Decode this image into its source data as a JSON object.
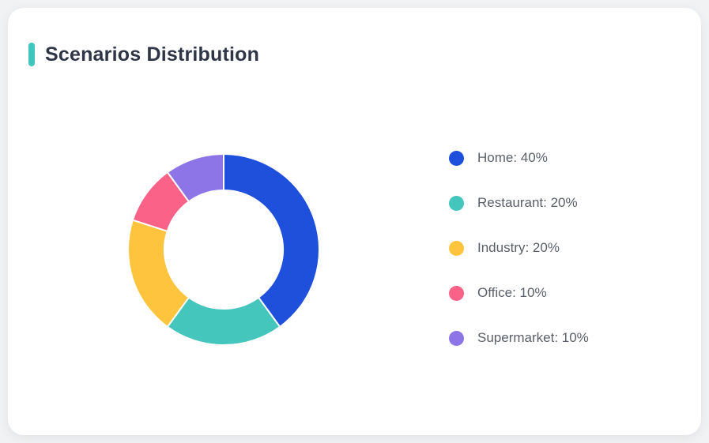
{
  "card": {
    "title": "Scenarios Distribution",
    "accent_color": "#3FC6BE",
    "title_color": "#2E3546",
    "background": "#FFFFFF",
    "page_background": "#F1F2F4"
  },
  "chart_data": {
    "type": "pie",
    "subtype": "donut",
    "title": "Scenarios Distribution",
    "categories": [
      "Home",
      "Restaurant",
      "Industry",
      "Office",
      "Supermarket"
    ],
    "values": [
      40,
      20,
      20,
      10,
      10
    ],
    "unit": "%",
    "colors": [
      "#1E50DC",
      "#45C6BD",
      "#FEC43D",
      "#FA6287",
      "#8E75E7"
    ],
    "legend_labels": [
      "Home: 40%",
      "Restaurant: 20%",
      "Industry: 20%",
      "Office: 10%",
      "Supermarket: 10%"
    ],
    "legend_position": "right",
    "start_angle_deg": 0,
    "clockwise": true,
    "inner_radius_ratio": 0.62,
    "segment_gap_color": "#FFFFFF"
  }
}
